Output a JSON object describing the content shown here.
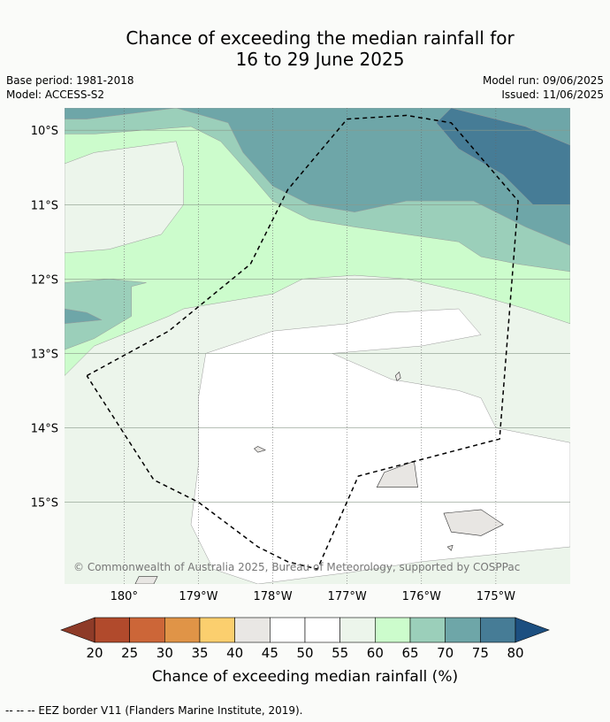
{
  "title": {
    "line1": "Chance of exceeding the median rainfall for",
    "line2": "16 to 29 June 2025"
  },
  "meta": {
    "base_period": "Base period: 1981-2018",
    "model": "Model: ACCESS-S2",
    "model_run": "Model run: 09/06/2025",
    "issued": "Issued: 11/06/2025"
  },
  "copyright": "© Commonwealth of Australia 2025, Bureau of Meteorology, supported by COSPPac",
  "footer": "--  --  -- EEZ border V11 (Flanders Marine Institute, 2019).",
  "colors": {
    "land": "#e8e6e3",
    "eez_border": "#000000"
  },
  "chart_data": {
    "type": "heatmap",
    "title": "Chance of exceeding the median rainfall for 16 to 29 June 2025",
    "xlabel": "",
    "ylabel": "",
    "xlim": [
      179.2,
      -174.0
    ],
    "ylim": [
      -16.1,
      -9.7
    ],
    "x_ticks": [
      {
        "value": 180,
        "label": "180°"
      },
      {
        "value": -179,
        "label": "179°W"
      },
      {
        "value": -178,
        "label": "178°W"
      },
      {
        "value": -177,
        "label": "177°W"
      },
      {
        "value": -176,
        "label": "176°W"
      },
      {
        "value": -175,
        "label": "175°W"
      }
    ],
    "y_ticks": [
      {
        "value": -10,
        "label": "10°S"
      },
      {
        "value": -11,
        "label": "11°S"
      },
      {
        "value": -12,
        "label": "12°S"
      },
      {
        "value": -13,
        "label": "13°S"
      },
      {
        "value": -14,
        "label": "14°S"
      },
      {
        "value": -15,
        "label": "15°S"
      }
    ],
    "grid": true,
    "colorbar": {
      "label": "Chance of exceeding median rainfall (%)",
      "ticks": [
        20,
        25,
        30,
        35,
        40,
        45,
        50,
        55,
        60,
        65,
        70,
        75,
        80
      ],
      "colors": [
        "#b14a2c",
        "#cc6638",
        "#e09447",
        "#fbcf6e",
        "#e9e7e4",
        "#ffffff",
        "#ffffff",
        "#ecf5eb",
        "#ccfccc",
        "#9bcfba",
        "#6ea6a8",
        "#467c96"
      ],
      "under_color": "#8e3b28",
      "over_color": "#1c4f80"
    },
    "regions": [
      {
        "level": "55-60",
        "color": "#ecf5eb",
        "polygon": [
          [
            179.2,
            -9.7
          ],
          [
            -174.0,
            -9.7
          ],
          [
            -174.0,
            -16.1
          ],
          [
            179.2,
            -16.1
          ]
        ]
      },
      {
        "level": "50-55",
        "color": "#ffffff",
        "polygon": [
          [
            -178.9,
            -13.0
          ],
          [
            -178.0,
            -12.7
          ],
          [
            -177.0,
            -12.6
          ],
          [
            -176.4,
            -12.45
          ],
          [
            -175.5,
            -12.4
          ],
          [
            -175.2,
            -12.75
          ],
          [
            -176.0,
            -12.9
          ],
          [
            -177.2,
            -13.0
          ],
          [
            -176.4,
            -13.35
          ],
          [
            -175.5,
            -13.5
          ],
          [
            -175.2,
            -13.6
          ],
          [
            -175.0,
            -14.0
          ],
          [
            -174.0,
            -14.2
          ],
          [
            -174.0,
            -15.6
          ],
          [
            -175.0,
            -15.7
          ],
          [
            -176.0,
            -15.8
          ],
          [
            -177.0,
            -15.95
          ],
          [
            -178.2,
            -16.1
          ],
          [
            -178.8,
            -15.9
          ],
          [
            -179.1,
            -15.3
          ],
          [
            -179.0,
            -14.5
          ],
          [
            -179.0,
            -13.6
          ]
        ]
      },
      {
        "level": "60-65",
        "color": "#ccfccc",
        "polygon": [
          [
            179.2,
            -10.0
          ],
          [
            -179.4,
            -9.85
          ],
          [
            -179.0,
            -9.9
          ],
          [
            -178.6,
            -10.1
          ],
          [
            -178.3,
            -10.55
          ],
          [
            -177.7,
            -10.85
          ],
          [
            -177.2,
            -10.9
          ],
          [
            -176.2,
            -10.7
          ],
          [
            -175.3,
            -10.75
          ],
          [
            -174.6,
            -11.0
          ],
          [
            -174.0,
            -11.0
          ],
          [
            -174.0,
            -12.6
          ],
          [
            -174.6,
            -12.4
          ],
          [
            -175.3,
            -12.2
          ],
          [
            -176.2,
            -12.0
          ],
          [
            -176.9,
            -11.95
          ],
          [
            -177.6,
            -12.0
          ],
          [
            -178.0,
            -12.2
          ],
          [
            -178.6,
            -12.3
          ],
          [
            -179.2,
            -12.4
          ],
          [
            -179.4,
            -12.5
          ],
          [
            179.6,
            -12.9
          ],
          [
            179.2,
            -13.3
          ]
        ]
      },
      {
        "level": "55-60",
        "color": "#ecf5eb",
        "polygon": [
          [
            179.2,
            -10.45
          ],
          [
            179.6,
            -10.3
          ],
          [
            -179.3,
            -10.15
          ],
          [
            -179.2,
            -10.5
          ],
          [
            -179.2,
            -11.0
          ],
          [
            -179.5,
            -11.4
          ],
          [
            179.8,
            -11.6
          ],
          [
            179.2,
            -11.65
          ]
        ]
      },
      {
        "level": "65-70",
        "color": "#9bcfba",
        "polygon": [
          [
            179.2,
            -9.7
          ],
          [
            -174.0,
            -9.7
          ],
          [
            -174.0,
            -11.9
          ],
          [
            -174.7,
            -11.8
          ],
          [
            -175.2,
            -11.7
          ],
          [
            -175.5,
            -11.5
          ],
          [
            -176.2,
            -11.4
          ],
          [
            -176.9,
            -11.3
          ],
          [
            -177.5,
            -11.2
          ],
          [
            -178.0,
            -10.95
          ],
          [
            -178.3,
            -10.6
          ],
          [
            -178.7,
            -10.15
          ],
          [
            -179.1,
            -9.95
          ],
          [
            179.6,
            -10.05
          ],
          [
            179.2,
            -10.05
          ]
        ]
      },
      {
        "level": "65-70",
        "color": "#9bcfba",
        "polygon": [
          [
            179.2,
            -12.05
          ],
          [
            179.8,
            -12.0
          ],
          [
            -179.7,
            -12.05
          ],
          [
            -179.9,
            -12.1
          ],
          [
            -179.9,
            -12.5
          ],
          [
            179.6,
            -12.8
          ],
          [
            179.2,
            -12.95
          ]
        ]
      },
      {
        "level": "70-75",
        "color": "#6ea6a8",
        "polygon": [
          [
            179.2,
            -9.7
          ],
          [
            -174.0,
            -9.7
          ],
          [
            -174.0,
            -11.55
          ],
          [
            -174.6,
            -11.3
          ],
          [
            -175.3,
            -10.95
          ],
          [
            -176.2,
            -10.95
          ],
          [
            -176.9,
            -11.1
          ],
          [
            -177.5,
            -11.0
          ],
          [
            -178.0,
            -10.75
          ],
          [
            -178.4,
            -10.3
          ],
          [
            -178.6,
            -9.9
          ],
          [
            -179.3,
            -9.7
          ],
          [
            179.5,
            -9.85
          ],
          [
            179.2,
            -9.85
          ]
        ]
      },
      {
        "level": "70-75",
        "color": "#6ea6a8",
        "polygon": [
          [
            179.2,
            -12.4
          ],
          [
            179.5,
            -12.45
          ],
          [
            179.7,
            -12.55
          ],
          [
            179.2,
            -12.6
          ]
        ]
      },
      {
        "level": "75-80",
        "color": "#467c96",
        "polygon": [
          [
            -175.6,
            -9.7
          ],
          [
            -174.6,
            -9.95
          ],
          [
            -174.0,
            -10.2
          ],
          [
            -174.0,
            -11.0
          ],
          [
            -174.5,
            -11.0
          ],
          [
            -174.9,
            -10.6
          ],
          [
            -175.5,
            -10.25
          ],
          [
            -175.8,
            -9.9
          ]
        ]
      }
    ],
    "land": [
      {
        "name": "island-1",
        "polygon": [
          [
            -176.35,
            -13.3
          ],
          [
            -176.3,
            -13.25
          ],
          [
            -176.28,
            -13.33
          ],
          [
            -176.33,
            -13.37
          ]
        ]
      },
      {
        "name": "island-2",
        "polygon": [
          [
            -178.2,
            -14.25
          ],
          [
            -178.1,
            -14.3
          ],
          [
            -178.2,
            -14.33
          ],
          [
            -178.25,
            -14.28
          ]
        ]
      },
      {
        "name": "island-3",
        "polygon": [
          [
            -176.5,
            -14.6
          ],
          [
            -176.1,
            -14.45
          ],
          [
            -176.05,
            -14.8
          ],
          [
            -176.6,
            -14.8
          ]
        ]
      },
      {
        "name": "island-4",
        "polygon": [
          [
            -175.7,
            -15.15
          ],
          [
            -175.2,
            -15.1
          ],
          [
            -174.9,
            -15.3
          ],
          [
            -175.2,
            -15.45
          ],
          [
            -175.6,
            -15.4
          ]
        ]
      },
      {
        "name": "island-5",
        "polygon": [
          [
            -175.65,
            -15.6
          ],
          [
            -175.58,
            -15.58
          ],
          [
            -175.6,
            -15.65
          ]
        ]
      },
      {
        "name": "island-6",
        "polygon": [
          [
            -179.8,
            -16.0
          ],
          [
            -179.55,
            -16.0
          ],
          [
            -179.6,
            -16.1
          ],
          [
            -179.85,
            -16.1
          ]
        ]
      }
    ],
    "eez_border": [
      [
        179.5,
        -13.3
      ],
      [
        -179.4,
        -12.7
      ],
      [
        -178.3,
        -11.8
      ],
      [
        -177.8,
        -10.8
      ],
      [
        -177.0,
        -9.85
      ],
      [
        -176.2,
        -9.8
      ],
      [
        -175.6,
        -9.9
      ],
      [
        -174.7,
        -10.95
      ],
      [
        -174.95,
        -14.15
      ],
      [
        -176.85,
        -14.65
      ],
      [
        -177.4,
        -15.9
      ],
      [
        -177.8,
        -15.8
      ],
      [
        -178.2,
        -15.6
      ],
      [
        -179.0,
        -15.0
      ],
      [
        -179.6,
        -14.7
      ],
      [
        179.5,
        -13.3
      ]
    ]
  }
}
